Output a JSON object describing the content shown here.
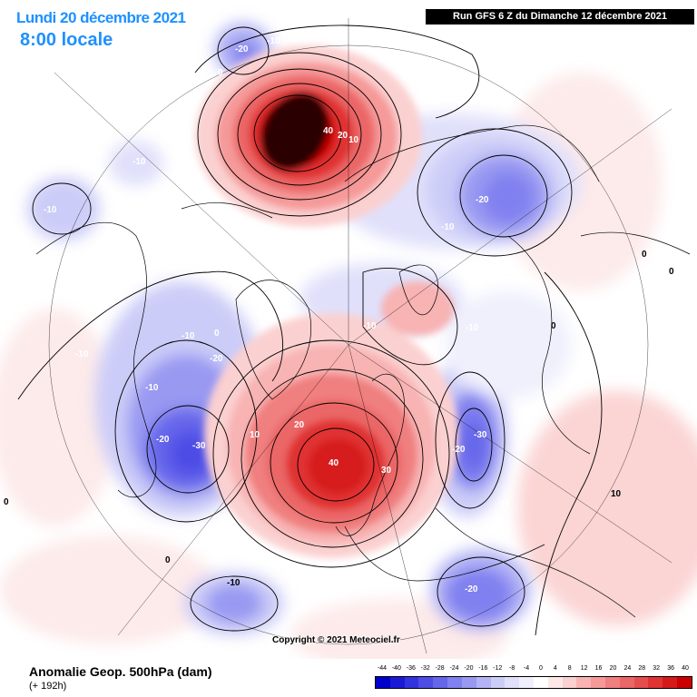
{
  "header": {
    "date": "Lundi 20 décembre 2021",
    "time": "8:00 locale",
    "run": "Run GFS 6 Z du Dimanche 12 décembre 2021"
  },
  "copyright": "Copyright © 2021 Meteociel.fr",
  "footer": {
    "variable": "Anomalie Geop. 500hPa (dam)",
    "lead": "(+ 192h)"
  },
  "legend": {
    "ticks": [
      "-44",
      "-40",
      "-36",
      "-32",
      "-28",
      "-24",
      "-20",
      "-16",
      "-12",
      "-8",
      "-4",
      "0",
      "4",
      "8",
      "12",
      "16",
      "20",
      "24",
      "28",
      "32",
      "36",
      "40"
    ],
    "colors": [
      "#0000cc",
      "#1a1ad6",
      "#3333e0",
      "#4d4de6",
      "#6666eb",
      "#8080f0",
      "#9999f2",
      "#b3b3f5",
      "#ccccf8",
      "#e0e0fb",
      "#f0f0fd",
      "#ffffff",
      "#fde8e8",
      "#fbd0d0",
      "#f8b3b3",
      "#f59999",
      "#f07f7f",
      "#eb6666",
      "#e64d4d",
      "#e03333",
      "#d61a1a",
      "#cc0000"
    ]
  },
  "map_labels": {
    "greenland_high": "40",
    "greenland_20": "20",
    "greenland_10": "10",
    "europe_high": "40",
    "scandinavia_30": "30",
    "atlantic_20": "20",
    "atlantic_10": "10",
    "alaska_low_a": "-20",
    "alaska_low_b": "-10",
    "pacific_0": "0",
    "canada_10": "-10",
    "canada_10b": "-10",
    "nw_canada_10": "-10",
    "na_10": "-10",
    "na_10b": "-10",
    "na_20": "-20",
    "na_20b": "-20",
    "na_30": "-30",
    "na_0": "0",
    "siberia_20": "-20",
    "siberia_10": "-10",
    "arctic_0": "0",
    "arctic_10": "-10",
    "russia_30": "-30",
    "russia_20": "-20",
    "russia_10": "-10",
    "asia_0a": "0",
    "asia_0b": "0",
    "asia_0c": "0",
    "asia_10": "10",
    "east_asia_20": "-20",
    "pacific_low": "-10",
    "south_0": "0",
    "left_0": "0"
  }
}
